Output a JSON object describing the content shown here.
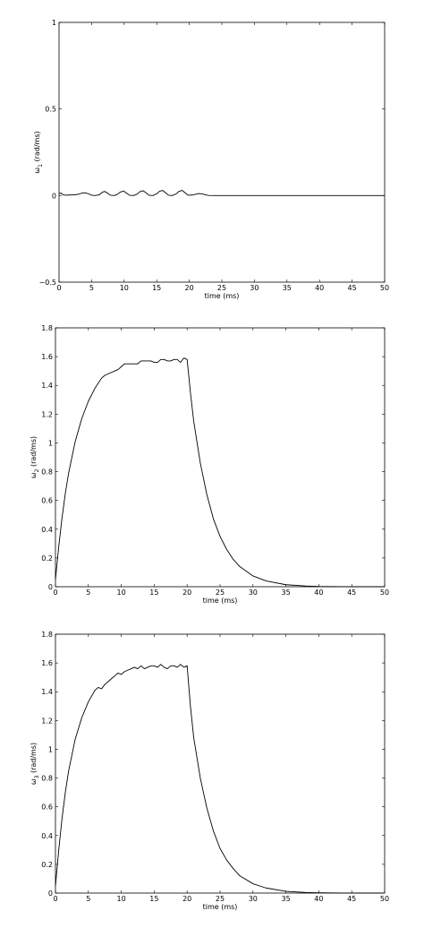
{
  "chart_data": [
    {
      "type": "line",
      "xlabel": "time (ms)",
      "ylabel": "ω",
      "ylabel_sub": "1",
      "ylabel_unit": "(rad/ms)",
      "xlim": [
        0,
        50
      ],
      "ylim": [
        -0.5,
        1
      ],
      "xticks": [
        0,
        5,
        10,
        15,
        20,
        25,
        30,
        35,
        40,
        45,
        50
      ],
      "yticks": [
        -0.5,
        0,
        0.5,
        1
      ],
      "ytick_labels": [
        "−0.5",
        "0",
        "0.5",
        "1"
      ],
      "grid": false,
      "series": [
        {
          "x": [
            0,
            0.3,
            0.6,
            1,
            1.5,
            2,
            2.5,
            3,
            3.5,
            3.9,
            4.4,
            5,
            5.6,
            6.2,
            6.6,
            7,
            7.4,
            7.9,
            8.5,
            9,
            9.4,
            9.9,
            10.3,
            10.8,
            11.4,
            12,
            12.4,
            12.9,
            13.3,
            13.8,
            14.4,
            15,
            15.4,
            15.9,
            16.3,
            16.8,
            17.4,
            18,
            18.4,
            18.9,
            19.3,
            19.8,
            20.5,
            21,
            21.5,
            22,
            22.5,
            23,
            24,
            25,
            30,
            35,
            40,
            45,
            50
          ],
          "y": [
            0.01,
            0.015,
            0.005,
            0.002,
            0.003,
            0.004,
            0.005,
            0.008,
            0.014,
            0.016,
            0.012,
            0.002,
            0,
            0.005,
            0.018,
            0.024,
            0.015,
            0.002,
            0,
            0.008,
            0.02,
            0.026,
            0.016,
            0.002,
            0,
            0.008,
            0.022,
            0.028,
            0.018,
            0.002,
            0,
            0.01,
            0.024,
            0.03,
            0.018,
            0.002,
            0,
            0.01,
            0.024,
            0.03,
            0.018,
            0.002,
            0.003,
            0.008,
            0.012,
            0.01,
            0.004,
            0.001,
            0,
            0,
            0,
            0,
            0,
            0,
            0
          ]
        }
      ]
    },
    {
      "type": "line",
      "xlabel": "time (ms)",
      "ylabel": "ω",
      "ylabel_sub": "2",
      "ylabel_unit": "(rad/ms)",
      "xlim": [
        0,
        50
      ],
      "ylim": [
        0,
        1.8
      ],
      "xticks": [
        0,
        5,
        10,
        15,
        20,
        25,
        30,
        35,
        40,
        45,
        50
      ],
      "yticks": [
        0,
        0.2,
        0.4,
        0.6,
        0.8,
        1,
        1.2,
        1.4,
        1.6,
        1.8
      ],
      "ytick_labels": [
        "0",
        "0.2",
        "0.4",
        "0.6",
        "0.8",
        "1",
        "1.2",
        "1.4",
        "1.6",
        "1.8"
      ],
      "grid": false,
      "series": [
        {
          "x": [
            0,
            0.5,
            1,
            1.5,
            2,
            3,
            4,
            5,
            6,
            7,
            7.5,
            8,
            8.5,
            9,
            9.5,
            10,
            10.5,
            11,
            11.5,
            12,
            12.5,
            13,
            13.5,
            14,
            14.5,
            15,
            15.5,
            16,
            16.5,
            17,
            17.5,
            18,
            18.5,
            19,
            19.5,
            20,
            20.5,
            21,
            22,
            23,
            24,
            25,
            26,
            27,
            28,
            30,
            32,
            35,
            38,
            40,
            45,
            50
          ],
          "y": [
            0.05,
            0.28,
            0.48,
            0.65,
            0.79,
            1.01,
            1.17,
            1.29,
            1.38,
            1.45,
            1.47,
            1.48,
            1.49,
            1.5,
            1.51,
            1.53,
            1.55,
            1.55,
            1.55,
            1.55,
            1.55,
            1.57,
            1.57,
            1.57,
            1.57,
            1.56,
            1.56,
            1.58,
            1.58,
            1.57,
            1.57,
            1.58,
            1.58,
            1.56,
            1.59,
            1.58,
            1.35,
            1.15,
            0.86,
            0.64,
            0.47,
            0.35,
            0.26,
            0.19,
            0.14,
            0.075,
            0.04,
            0.014,
            0.005,
            0.002,
            0,
            0
          ]
        }
      ]
    },
    {
      "type": "line",
      "xlabel": "time (ms)",
      "ylabel": "ω",
      "ylabel_sub": "3",
      "ylabel_unit": "(rad/ms)",
      "xlim": [
        0,
        50
      ],
      "ylim": [
        0,
        1.8
      ],
      "xticks": [
        0,
        5,
        10,
        15,
        20,
        25,
        30,
        35,
        40,
        45,
        50
      ],
      "yticks": [
        0,
        0.2,
        0.4,
        0.6,
        0.8,
        1,
        1.2,
        1.4,
        1.6,
        1.8
      ],
      "ytick_labels": [
        "0",
        "0.2",
        "0.4",
        "0.6",
        "0.8",
        "1",
        "1.2",
        "1.4",
        "1.6",
        "1.8"
      ],
      "grid": false,
      "series": [
        {
          "x": [
            0,
            0.5,
            1,
            1.5,
            2,
            3,
            4,
            5,
            6,
            6.5,
            7,
            7.5,
            8,
            8.5,
            9,
            9.5,
            10,
            10.5,
            11,
            11.5,
            12,
            12.5,
            13,
            13.5,
            14,
            14.5,
            15,
            15.5,
            16,
            16.5,
            17,
            17.5,
            18,
            18.5,
            19,
            19.5,
            20,
            20.5,
            21,
            22,
            23,
            24,
            25,
            26,
            27,
            28,
            30,
            32,
            35,
            38,
            40,
            45,
            50
          ],
          "y": [
            0.05,
            0.3,
            0.52,
            0.7,
            0.85,
            1.07,
            1.22,
            1.33,
            1.41,
            1.43,
            1.42,
            1.45,
            1.47,
            1.49,
            1.51,
            1.53,
            1.52,
            1.54,
            1.55,
            1.56,
            1.57,
            1.56,
            1.58,
            1.56,
            1.57,
            1.58,
            1.58,
            1.57,
            1.59,
            1.57,
            1.56,
            1.58,
            1.58,
            1.57,
            1.59,
            1.57,
            1.58,
            1.3,
            1.08,
            0.8,
            0.59,
            0.43,
            0.31,
            0.23,
            0.17,
            0.12,
            0.065,
            0.035,
            0.012,
            0.004,
            0.002,
            0,
            0
          ]
        }
      ]
    }
  ]
}
